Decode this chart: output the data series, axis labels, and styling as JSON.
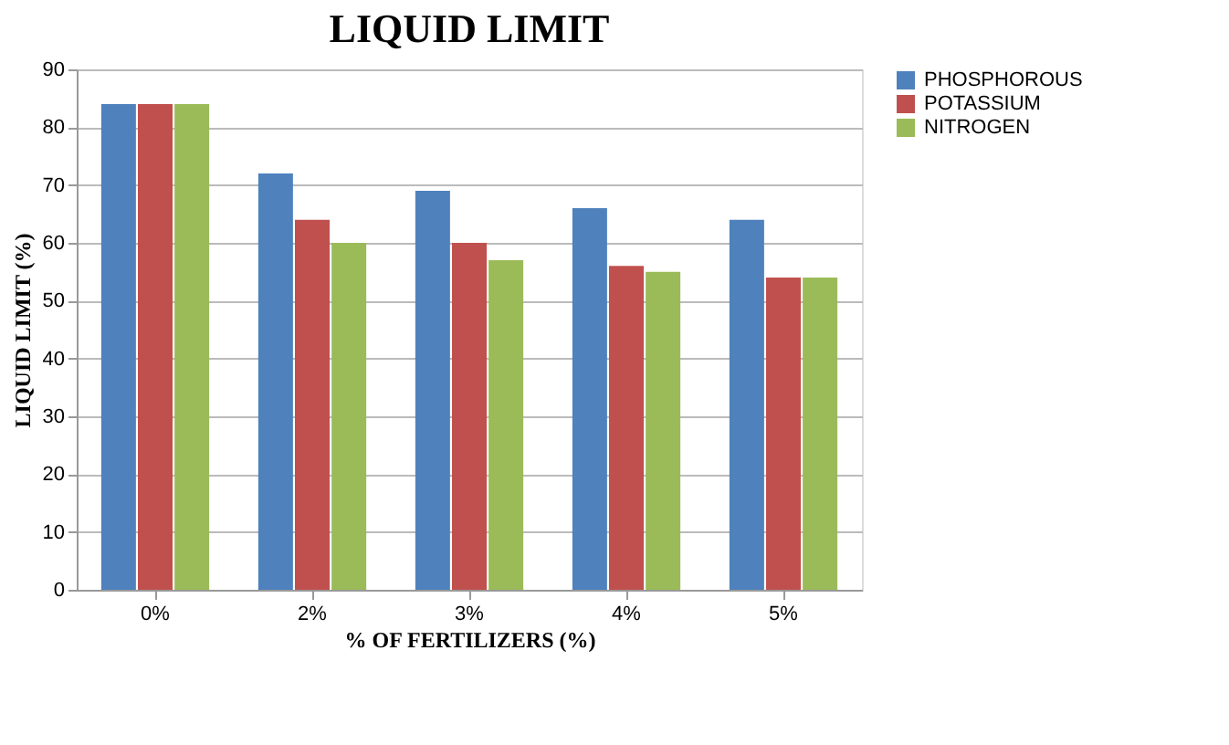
{
  "chart_data": {
    "type": "bar",
    "title": "LIQUID LIMIT",
    "xlabel": "% OF FERTILIZERS (%)",
    "ylabel": "LIQUID LIMIT (%)",
    "categories": [
      "0%",
      "2%",
      "3%",
      "4%",
      "5%"
    ],
    "series": [
      {
        "name": "PHOSPHOROUS",
        "color": "#4f81bd",
        "values": [
          84,
          72,
          69,
          66,
          64
        ]
      },
      {
        "name": "POTASSIUM",
        "color": "#c0504d",
        "values": [
          84,
          64,
          60,
          56,
          54
        ]
      },
      {
        "name": "NITROGEN",
        "color": "#9bbb59",
        "values": [
          84,
          60,
          57,
          55,
          54
        ]
      }
    ],
    "ylim": [
      0,
      90
    ],
    "yticks": [
      0,
      10,
      20,
      30,
      40,
      50,
      60,
      70,
      80,
      90
    ],
    "grid": "y",
    "legend": "right"
  }
}
